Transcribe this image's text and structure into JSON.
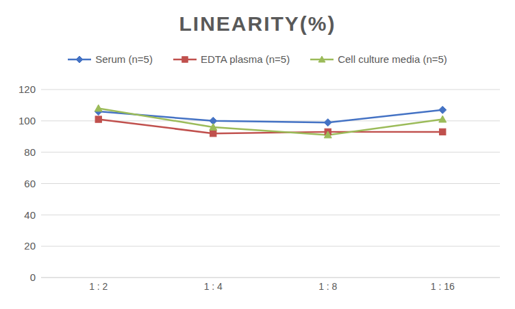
{
  "chart_data": {
    "type": "line",
    "title": "LINEARITY(%)",
    "categories": [
      "1 : 2",
      "1 : 4",
      "1 : 8",
      "1 : 16"
    ],
    "series": [
      {
        "name": "Serum (n=5)",
        "color": "#4472c4",
        "marker": "diamond",
        "values": [
          106,
          100,
          99,
          107
        ]
      },
      {
        "name": "EDTA plasma (n=5)",
        "color": "#c0504d",
        "marker": "square",
        "values": [
          101,
          92,
          93,
          93
        ]
      },
      {
        "name": "Cell culture media (n=5)",
        "color": "#9bbb59",
        "marker": "triangle",
        "values": [
          108,
          96,
          91,
          101
        ]
      }
    ],
    "ylim": [
      0,
      120
    ],
    "yticks": [
      0,
      20,
      40,
      60,
      80,
      100,
      120
    ],
    "grid": true,
    "legend": "top"
  }
}
